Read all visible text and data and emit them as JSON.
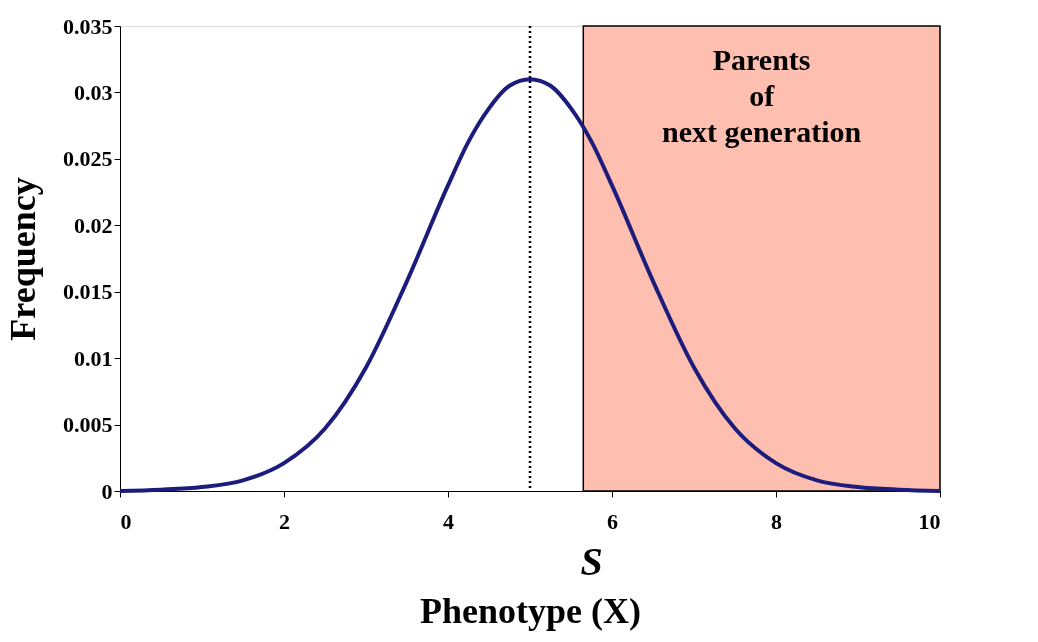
{
  "chart_data": {
    "type": "line",
    "xlabel": "Phenotype (X)",
    "ylabel": "Frequency",
    "x": [
      0,
      0.5,
      1,
      1.5,
      2,
      2.5,
      3,
      3.5,
      4,
      4.25,
      4.5,
      4.75,
      5,
      5.25,
      5.5,
      5.75,
      6,
      6.5,
      7,
      7.5,
      8,
      8.5,
      9,
      9.5,
      10
    ],
    "series": [
      {
        "color": "#1c1c7c",
        "values": [
          0,
          0.0001,
          0.0003,
          0.0008,
          0.0021,
          0.0047,
          0.0093,
          0.0158,
          0.023,
          0.0263,
          0.0288,
          0.0305,
          0.031,
          0.0305,
          0.0288,
          0.0263,
          0.023,
          0.0158,
          0.0093,
          0.0047,
          0.0021,
          0.0008,
          0.0003,
          0.0001,
          0
        ]
      }
    ],
    "xlim": [
      0,
      10
    ],
    "xticks": [
      0,
      2,
      4,
      6,
      8,
      10
    ],
    "ylim": [
      0,
      0.035
    ],
    "yticks": [
      0,
      0.005,
      0.01,
      0.015,
      0.02,
      0.025,
      0.03,
      0.035
    ],
    "ref_lines": [
      {
        "axis": "x",
        "value": 5,
        "line_style": "dotted",
        "color": "#000000"
      }
    ],
    "bands": [
      {
        "axis": "x",
        "from": 5.65,
        "to": 10,
        "label": "Parents\nof\nnext generation",
        "color": "#ffbfb0"
      }
    ],
    "annotations": [
      "S"
    ],
    "grid": false,
    "marker": "none",
    "line_style": "solid"
  }
}
